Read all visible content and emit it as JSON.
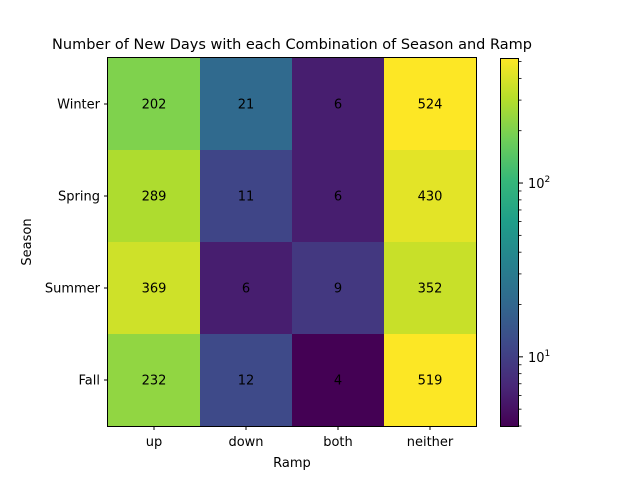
{
  "chart_data": {
    "type": "heatmap",
    "title": "Number of New Days with each Combination of Season and Ramp",
    "xlabel": "Ramp",
    "ylabel": "Season",
    "x_categories": [
      "up",
      "down",
      "both",
      "neither"
    ],
    "y_categories": [
      "Winter",
      "Spring",
      "Summer",
      "Fall"
    ],
    "values": [
      [
        202,
        21,
        6,
        524
      ],
      [
        289,
        11,
        6,
        430
      ],
      [
        369,
        6,
        9,
        352
      ],
      [
        232,
        12,
        4,
        519
      ]
    ],
    "colorbar": {
      "scale": "log",
      "colormap": "viridis",
      "range": [
        4,
        524
      ],
      "ticks": [
        {
          "value": 10,
          "label": "10",
          "sup": "1"
        },
        {
          "value": 100,
          "label": "10",
          "sup": "2"
        }
      ]
    },
    "grid": false
  }
}
